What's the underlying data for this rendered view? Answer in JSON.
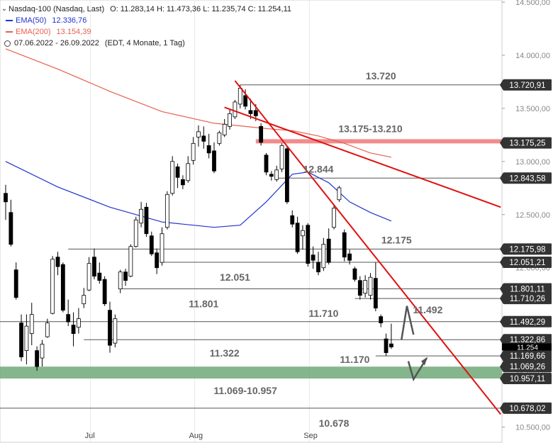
{
  "legend": {
    "title": "Nasdaq-100 (Nasdaq, Last)",
    "ohlc": "O: 11.283,14  H: 11.473,36  L: 11.235,74  C: 11.254,11",
    "ema50_label": "EMA(50)",
    "ema50_value": "12.336,76",
    "ema200_label": "EMA(200)",
    "ema200_value": "13.154,39",
    "period": "07.06.2022 - 26.09.2022",
    "period_note": "(EDT, 4 Monate, 1 Tag)"
  },
  "colors": {
    "up": "#ffffff",
    "down": "#000000",
    "ema50": "#2233cc",
    "ema200": "#e86050",
    "trend": "#e01010",
    "level_line": "#555555",
    "zone_green": "#6ea878",
    "zone_red": "#f08080",
    "arrow": "#555555"
  },
  "chart_data": {
    "type": "candlestick",
    "x_ticks": [
      "Jul",
      "Aug",
      "Sep"
    ],
    "y_ticks": [
      "14.500,00",
      "14.000,00",
      "13.500,00",
      "13.000,00",
      "12.500,00",
      "12.000,00",
      "11.500,00",
      "11.000,00",
      "10.500,00"
    ],
    "y_tick_values": [
      14500,
      14000,
      13500,
      13000,
      12500,
      12000,
      11500,
      11000,
      10500
    ],
    "ylim": [
      10350,
      14520
    ],
    "candles": [
      {
        "o": 12700,
        "h": 12780,
        "l": 12450,
        "c": 12620
      },
      {
        "o": 12520,
        "h": 12640,
        "l": 12200,
        "c": 12220
      },
      {
        "o": 11980,
        "h": 12050,
        "l": 11700,
        "c": 11720
      },
      {
        "o": 11480,
        "h": 11560,
        "l": 11120,
        "c": 11160
      },
      {
        "o": 11220,
        "h": 11560,
        "l": 11090,
        "c": 11450
      },
      {
        "o": 11380,
        "h": 11670,
        "l": 11270,
        "c": 11560
      },
      {
        "o": 11220,
        "h": 11260,
        "l": 11030,
        "c": 11070
      },
      {
        "o": 11150,
        "h": 11320,
        "l": 11070,
        "c": 11280
      },
      {
        "o": 11350,
        "h": 11520,
        "l": 11340,
        "c": 11480
      },
      {
        "o": 11570,
        "h": 12110,
        "l": 11560,
        "c": 12080
      },
      {
        "o": 12100,
        "h": 12150,
        "l": 11930,
        "c": 12010
      },
      {
        "o": 12030,
        "h": 12050,
        "l": 11580,
        "c": 11600
      },
      {
        "o": 11560,
        "h": 11700,
        "l": 11450,
        "c": 11490
      },
      {
        "o": 11460,
        "h": 11580,
        "l": 11260,
        "c": 11380
      },
      {
        "o": 11440,
        "h": 11620,
        "l": 11380,
        "c": 11520
      },
      {
        "o": 11660,
        "h": 11810,
        "l": 11620,
        "c": 11740
      },
      {
        "o": 11790,
        "h": 12100,
        "l": 11780,
        "c": 12040
      },
      {
        "o": 12100,
        "h": 12180,
        "l": 11890,
        "c": 11920
      },
      {
        "o": 11950,
        "h": 12050,
        "l": 11850,
        "c": 11880
      },
      {
        "o": 11890,
        "h": 11920,
        "l": 11640,
        "c": 11660
      },
      {
        "o": 11600,
        "h": 11680,
        "l": 11200,
        "c": 11270
      },
      {
        "o": 11290,
        "h": 11560,
        "l": 11250,
        "c": 11520
      },
      {
        "o": 11800,
        "h": 11980,
        "l": 11760,
        "c": 11960
      },
      {
        "o": 11960,
        "h": 11990,
        "l": 11830,
        "c": 11880
      },
      {
        "o": 11920,
        "h": 12220,
        "l": 11910,
        "c": 12200
      },
      {
        "o": 12200,
        "h": 12480,
        "l": 12190,
        "c": 12450
      },
      {
        "o": 12420,
        "h": 12620,
        "l": 12380,
        "c": 12550
      },
      {
        "o": 12570,
        "h": 12610,
        "l": 12290,
        "c": 12320
      },
      {
        "o": 12300,
        "h": 12340,
        "l": 12110,
        "c": 12130
      },
      {
        "o": 12140,
        "h": 12180,
        "l": 11940,
        "c": 12000
      },
      {
        "o": 12050,
        "h": 12380,
        "l": 12020,
        "c": 12320
      },
      {
        "o": 12380,
        "h": 12720,
        "l": 12360,
        "c": 12690
      },
      {
        "o": 12700,
        "h": 13050,
        "l": 12680,
        "c": 13000
      },
      {
        "o": 12950,
        "h": 12980,
        "l": 12750,
        "c": 12850
      },
      {
        "o": 12830,
        "h": 12870,
        "l": 12740,
        "c": 12780
      },
      {
        "o": 12820,
        "h": 13050,
        "l": 12800,
        "c": 12980
      },
      {
        "o": 13010,
        "h": 13230,
        "l": 12970,
        "c": 13170
      },
      {
        "o": 13230,
        "h": 13340,
        "l": 13140,
        "c": 13280
      },
      {
        "o": 13240,
        "h": 13330,
        "l": 13120,
        "c": 13190
      },
      {
        "o": 13150,
        "h": 13260,
        "l": 13030,
        "c": 13080
      },
      {
        "o": 13100,
        "h": 13180,
        "l": 12890,
        "c": 12910
      },
      {
        "o": 13170,
        "h": 13290,
        "l": 13150,
        "c": 13270
      },
      {
        "o": 13250,
        "h": 13400,
        "l": 13230,
        "c": 13350
      },
      {
        "o": 13330,
        "h": 13490,
        "l": 13300,
        "c": 13450
      },
      {
        "o": 13420,
        "h": 13580,
        "l": 13400,
        "c": 13560
      },
      {
        "o": 13540,
        "h": 13721,
        "l": 13500,
        "c": 13690
      },
      {
        "o": 13620,
        "h": 13680,
        "l": 13490,
        "c": 13520
      },
      {
        "o": 13480,
        "h": 13590,
        "l": 13400,
        "c": 13450
      },
      {
        "o": 13480,
        "h": 13540,
        "l": 13380,
        "c": 13430
      },
      {
        "o": 13330,
        "h": 13360,
        "l": 13150,
        "c": 13180
      },
      {
        "o": 13060,
        "h": 13080,
        "l": 12870,
        "c": 12900
      },
      {
        "o": 12880,
        "h": 12910,
        "l": 12820,
        "c": 12860
      },
      {
        "o": 12830,
        "h": 12960,
        "l": 12810,
        "c": 12920
      },
      {
        "o": 12930,
        "h": 13170,
        "l": 12900,
        "c": 13150
      },
      {
        "o": 13120,
        "h": 13150,
        "l": 12600,
        "c": 12620
      },
      {
        "o": 12490,
        "h": 12540,
        "l": 12380,
        "c": 12410
      },
      {
        "o": 12420,
        "h": 12480,
        "l": 12130,
        "c": 12150
      },
      {
        "o": 12300,
        "h": 12400,
        "l": 12170,
        "c": 12350
      },
      {
        "o": 12400,
        "h": 12420,
        "l": 12010,
        "c": 12040
      },
      {
        "o": 12120,
        "h": 12200,
        "l": 11990,
        "c": 12070
      },
      {
        "o": 12050,
        "h": 12150,
        "l": 11930,
        "c": 11960
      },
      {
        "o": 12000,
        "h": 12280,
        "l": 11970,
        "c": 12220
      },
      {
        "o": 12270,
        "h": 12370,
        "l": 12030,
        "c": 12050
      },
      {
        "o": 12380,
        "h": 12600,
        "l": 12360,
        "c": 12560
      },
      {
        "o": 12640,
        "h": 12770,
        "l": 12620,
        "c": 12752
      },
      {
        "o": 12330,
        "h": 12360,
        "l": 12060,
        "c": 12100
      },
      {
        "o": 12130,
        "h": 12170,
        "l": 12030,
        "c": 12070
      },
      {
        "o": 11990,
        "h": 12010,
        "l": 11870,
        "c": 11890
      },
      {
        "o": 11880,
        "h": 11920,
        "l": 11700,
        "c": 11740
      },
      {
        "o": 11760,
        "h": 11930,
        "l": 11720,
        "c": 11880
      },
      {
        "o": 11740,
        "h": 11950,
        "l": 11700,
        "c": 11910
      },
      {
        "o": 11900,
        "h": 12051,
        "l": 11590,
        "c": 11620
      },
      {
        "o": 11540,
        "h": 11560,
        "l": 11440,
        "c": 11480
      },
      {
        "o": 11330,
        "h": 11380,
        "l": 11170,
        "c": 11200
      },
      {
        "o": 11283,
        "h": 11473,
        "l": 11236,
        "c": 11254
      }
    ],
    "ema50": [
      [
        0,
        13000
      ],
      [
        10,
        12760
      ],
      [
        20,
        12570
      ],
      [
        30,
        12430
      ],
      [
        40,
        12380
      ],
      [
        45,
        12400
      ],
      [
        50,
        12620
      ],
      [
        55,
        12880
      ],
      [
        58,
        12900
      ],
      [
        62,
        12800
      ],
      [
        66,
        12620
      ],
      [
        70,
        12520
      ],
      [
        74,
        12440
      ]
    ],
    "ema200": [
      [
        0,
        14060
      ],
      [
        10,
        13870
      ],
      [
        20,
        13660
      ],
      [
        30,
        13470
      ],
      [
        40,
        13360
      ],
      [
        45,
        13335
      ],
      [
        50,
        13310
      ],
      [
        55,
        13290
      ],
      [
        60,
        13240
      ],
      [
        65,
        13170
      ],
      [
        70,
        13080
      ],
      [
        74,
        13040
      ]
    ],
    "levels": [
      {
        "label": "13.720",
        "axis": "13.720,91",
        "value": 13720.91,
        "from": 45,
        "text_x": 72
      },
      {
        "label": "12.844",
        "axis": "12.843,58",
        "value": 12843.58,
        "from": 52,
        "text_x": 60
      },
      {
        "label": "12.175",
        "axis": "12.175,98",
        "value": 12175.98,
        "from": 12,
        "text_x": 75
      },
      {
        "label": "12.051",
        "axis": "12.051,21",
        "value": 12051.21,
        "from": 30,
        "text_x": 44
      },
      {
        "label": "11.801",
        "axis": "11.801,11",
        "value": 11801.11,
        "from": 22,
        "text_x": 38
      },
      {
        "label": "11.710",
        "axis": "11.710,26",
        "value": 11710.26,
        "from": 67,
        "text_x": 61
      },
      {
        "label": "11.492",
        "axis": "11.492,29",
        "value": 11492.29,
        "from": 0,
        "text_x": 81
      },
      {
        "label": "11.322",
        "axis": "11.322,86",
        "value": 11322.86,
        "from": 15,
        "text_x": 42
      },
      {
        "label": "11.170",
        "axis": "11.169,66",
        "value": 11169.66,
        "from": 71,
        "text_x": 67
      },
      {
        "label": "10.678",
        "axis": "10.678,02",
        "value": 10678.02,
        "from": 0,
        "text_x": 63
      }
    ],
    "zones": [
      {
        "label": "13.175-13.210",
        "axis": "13.175,25",
        "low": 13175,
        "high": 13210,
        "type": "red",
        "from": 48,
        "text_x": 70
      },
      {
        "label": "11.069-10.957",
        "axis_low": "10.957,11",
        "axis_high": "11.069,26",
        "low": 10957,
        "high": 11069,
        "type": "green",
        "from": 0,
        "text_x": 46
      }
    ],
    "trendlines": [
      {
        "from": [
          44,
          13760
        ],
        "to": [
          95,
          10620
        ]
      },
      {
        "from": [
          42,
          13510
        ],
        "to": [
          95,
          12570
        ]
      }
    ],
    "last_axis_label": "11.254"
  }
}
